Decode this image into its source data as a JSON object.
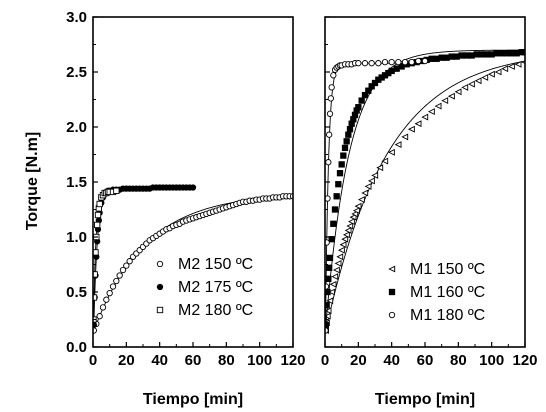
{
  "chart_data": [
    {
      "type": "scatter",
      "panel": "left",
      "xlabel": "Tiempo [min]",
      "ylabel": "Torque [N.m]",
      "xlim": [
        0,
        120
      ],
      "ylim": [
        0,
        3.0
      ],
      "xticks": [
        "0",
        "20",
        "40",
        "60",
        "80",
        "100",
        "120"
      ],
      "yticks": [
        "0.0",
        "0.5",
        "1.0",
        "1.5",
        "2.0",
        "2.5",
        "3.0"
      ],
      "grid": false,
      "legend_position": "bottom-right",
      "series": [
        {
          "name": "M2 150 ºC",
          "marker": "circle-open",
          "model": {
            "t0": 0.5,
            "y0": 0.15,
            "ymax": 1.4,
            "k": 0.032
          },
          "x": [
            0.5,
            2,
            4,
            6,
            8,
            10,
            12,
            14,
            16,
            18,
            20,
            22,
            24,
            26,
            28,
            30,
            32,
            34,
            36,
            38,
            40,
            42,
            44,
            46,
            48,
            50,
            52,
            54,
            56,
            58,
            60,
            62,
            64,
            66,
            68,
            70,
            72,
            74,
            76,
            78,
            80,
            82,
            84,
            86,
            88,
            90,
            92,
            94,
            96,
            98,
            100,
            102,
            104,
            106,
            108,
            110,
            112,
            114,
            116,
            118,
            120
          ],
          "y": [
            0.15,
            0.21,
            0.28,
            0.36,
            0.43,
            0.49,
            0.55,
            0.6,
            0.65,
            0.7,
            0.74,
            0.78,
            0.82,
            0.85,
            0.88,
            0.91,
            0.94,
            0.97,
            0.99,
            1.01,
            1.03,
            1.05,
            1.07,
            1.08,
            1.1,
            1.11,
            1.12,
            1.14,
            1.15,
            1.16,
            1.17,
            1.18,
            1.19,
            1.2,
            1.21,
            1.22,
            1.23,
            1.24,
            1.25,
            1.26,
            1.27,
            1.28,
            1.29,
            1.3,
            1.31,
            1.32,
            1.32,
            1.33,
            1.33,
            1.34,
            1.34,
            1.35,
            1.35,
            1.35,
            1.36,
            1.36,
            1.36,
            1.37,
            1.37,
            1.37,
            1.37
          ]
        },
        {
          "name": "M2 175 ºC",
          "marker": "circle-filled",
          "model": {
            "t0": 0.5,
            "y0": 0.2,
            "ymax": 1.44,
            "k": 0.45
          },
          "x": [
            0.5,
            1,
            1.5,
            2,
            2.5,
            3,
            3.5,
            4,
            5,
            6,
            7,
            8,
            9,
            10,
            12,
            14,
            16,
            18,
            20,
            22,
            24,
            26,
            28,
            30,
            32,
            34,
            36,
            38,
            40,
            42,
            44,
            46,
            48,
            50,
            52,
            54,
            56,
            58,
            60
          ],
          "y": [
            0.2,
            0.45,
            0.65,
            0.82,
            0.96,
            1.07,
            1.15,
            1.22,
            1.31,
            1.36,
            1.39,
            1.41,
            1.42,
            1.42,
            1.43,
            1.43,
            1.43,
            1.44,
            1.44,
            1.44,
            1.44,
            1.44,
            1.44,
            1.44,
            1.44,
            1.44,
            1.45,
            1.45,
            1.45,
            1.45,
            1.45,
            1.45,
            1.45,
            1.45,
            1.45,
            1.45,
            1.45,
            1.45,
            1.45
          ]
        },
        {
          "name": "M2 180 ºC",
          "marker": "square-open",
          "model": {
            "t0": 0.3,
            "y0": 0.25,
            "ymax": 1.41,
            "k": 0.65
          },
          "x": [
            0.3,
            0.6,
            1,
            1.5,
            2,
            2.5,
            3,
            3.5,
            4,
            5,
            6,
            7,
            8,
            9,
            10,
            12,
            14
          ],
          "y": [
            0.25,
            0.45,
            0.66,
            0.86,
            1.0,
            1.11,
            1.2,
            1.26,
            1.3,
            1.36,
            1.38,
            1.4,
            1.4,
            1.41,
            1.41,
            1.41,
            1.42
          ]
        }
      ]
    },
    {
      "type": "scatter",
      "panel": "right",
      "xlabel": "Tiempo [min]",
      "ylabel": "",
      "xlim": [
        0,
        120
      ],
      "ylim": [
        0,
        3.0
      ],
      "xticks": [
        "0",
        "20",
        "40",
        "60",
        "80",
        "100",
        "120"
      ],
      "yticks": [],
      "grid": false,
      "legend_position": "bottom-right",
      "series": [
        {
          "name": "M1 150 ºC",
          "marker": "triangle-left-open",
          "model": {
            "t0": 0.5,
            "y0": 0.15,
            "ymax": 2.7,
            "k": 0.027
          },
          "x": [
            0.5,
            1,
            1.5,
            2,
            3,
            4,
            5,
            6,
            7,
            8,
            9,
            10,
            11,
            12,
            13,
            14,
            15,
            16,
            17,
            18,
            19,
            20,
            22,
            24,
            26,
            28,
            30,
            33,
            36,
            40,
            44,
            48,
            52,
            56,
            60,
            64,
            68,
            72,
            76,
            80,
            84,
            88,
            92,
            96,
            100,
            104,
            108,
            112,
            116,
            120
          ],
          "y": [
            0.15,
            0.22,
            0.28,
            0.33,
            0.42,
            0.5,
            0.57,
            0.64,
            0.7,
            0.76,
            0.82,
            0.88,
            0.93,
            0.98,
            1.02,
            1.06,
            1.1,
            1.14,
            1.18,
            1.21,
            1.24,
            1.28,
            1.34,
            1.4,
            1.46,
            1.51,
            1.56,
            1.63,
            1.69,
            1.77,
            1.84,
            1.91,
            1.98,
            2.03,
            2.09,
            2.14,
            2.19,
            2.24,
            2.28,
            2.32,
            2.36,
            2.39,
            2.42,
            2.45,
            2.48,
            2.5,
            2.53,
            2.55,
            2.57,
            2.59
          ]
        },
        {
          "name": "M1 160 ºC",
          "marker": "square-filled",
          "model": {
            "t0": 0.5,
            "y0": 0.2,
            "ymax": 2.7,
            "k": 0.07
          },
          "x": [
            0.5,
            1,
            1.5,
            2,
            2.5,
            3,
            4,
            5,
            6,
            7,
            8,
            9,
            10,
            11,
            12,
            13,
            14,
            15,
            16,
            17,
            18,
            19,
            20,
            22,
            24,
            26,
            28,
            30,
            32,
            34,
            36,
            38,
            40,
            43,
            46,
            49,
            52,
            55,
            58,
            61,
            64,
            67,
            70,
            73,
            76,
            79,
            82,
            85,
            88,
            91,
            94,
            97,
            100,
            103,
            106,
            109,
            112,
            115,
            118,
            120
          ],
          "y": [
            0.2,
            0.38,
            0.5,
            0.62,
            0.72,
            0.81,
            0.98,
            1.12,
            1.25,
            1.37,
            1.48,
            1.58,
            1.66,
            1.74,
            1.81,
            1.87,
            1.93,
            1.98,
            2.03,
            2.07,
            2.11,
            2.15,
            2.18,
            2.24,
            2.29,
            2.33,
            2.37,
            2.4,
            2.43,
            2.45,
            2.47,
            2.49,
            2.51,
            2.53,
            2.55,
            2.57,
            2.58,
            2.59,
            2.6,
            2.61,
            2.62,
            2.62,
            2.63,
            2.63,
            2.64,
            2.64,
            2.65,
            2.65,
            2.65,
            2.66,
            2.66,
            2.66,
            2.66,
            2.67,
            2.67,
            2.67,
            2.67,
            2.67,
            2.68,
            2.68
          ]
        },
        {
          "name": "M1 180 ºC",
          "marker": "circle-open",
          "model": {
            "t0": 0.3,
            "y0": 0.15,
            "ymax": 2.58,
            "k": 0.55
          },
          "x": [
            0.3,
            0.6,
            1,
            1.5,
            2,
            2.5,
            3,
            3.5,
            4,
            5,
            6,
            7,
            8,
            9,
            10,
            12,
            14,
            16,
            18,
            20,
            24,
            28,
            32,
            36,
            40,
            44,
            48,
            52,
            56,
            60
          ],
          "y": [
            0.15,
            0.55,
            0.95,
            1.35,
            1.68,
            1.93,
            2.12,
            2.26,
            2.36,
            2.47,
            2.52,
            2.54,
            2.55,
            2.56,
            2.56,
            2.57,
            2.57,
            2.57,
            2.58,
            2.58,
            2.58,
            2.58,
            2.58,
            2.59,
            2.59,
            2.59,
            2.59,
            2.59,
            2.6,
            2.6
          ]
        }
      ]
    }
  ]
}
